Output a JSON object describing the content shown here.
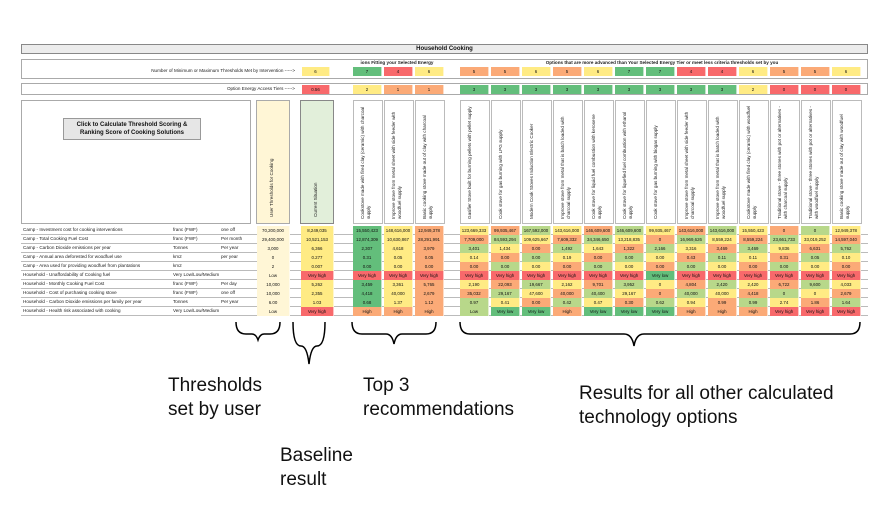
{
  "sheet": {
    "title": "Household Cooking",
    "thresholds_met_label": "Number of Minimum or Maximum Thresholds Met by Intervention ----->",
    "tier_label": "Option Energy Access Tiers ----->",
    "fitting_header": "ions Fitting your Selected Energy",
    "advanced_header": "Options that are more advanced than Your Selected Energy Tier or meet less criteria thresholds set by you",
    "button_label": "Click to Calculate Threshold Scoring & Ranking Score of Cooking Solutions",
    "user_thresholds_header": "User Thresholds for Cooking",
    "current_situation_header": "Current Situation",
    "current_thresholds_met": "6",
    "current_tier": "0.56"
  },
  "rows": [
    {
      "label": "Camp - Investment cost for cooking interventions",
      "unit": "franc (FWF)",
      "period": "one off",
      "threshold": "70,200,000"
    },
    {
      "label": "Camp - Total Cooking Fuel Cost",
      "unit": "franc (FWF)",
      "period": "Per month",
      "threshold": "29,400,000"
    },
    {
      "label": "Camp - Carbon Dioxide emissions per year",
      "unit": "Tonnes",
      "period": "Per year",
      "threshold": "3,000"
    },
    {
      "label": "Camp - Annual area deforested for woodfuel use",
      "unit": "km2",
      "period": "per year",
      "threshold": "0"
    },
    {
      "label": "Camp - Area used for providing woodfuel from plantations",
      "unit": "km2",
      "period": "",
      "threshold": "2"
    },
    {
      "label": "Household - Unaffordability of Cooking fuel",
      "unit": "Very Low/Low/Medium/High/Very high",
      "period": "",
      "threshold": "Low"
    },
    {
      "label": "Household - Monthly Cooking Fuel Cost",
      "unit": "franc (FWF)",
      "period": "Per day",
      "threshold": "10,000"
    },
    {
      "label": "Household - Cost of purchasing cooking stove",
      "unit": "franc (FWF)",
      "period": "one off",
      "threshold": "10,000"
    },
    {
      "label": "Household - Carbon Dioxide emissions per family per year",
      "unit": "Tonnes",
      "period": "Per year",
      "threshold": "6.00"
    },
    {
      "label": "Household - Health risk associated with cooking",
      "unit": "Very Low/Low/Medium/High/Very high",
      "period": "",
      "threshold": "Low"
    }
  ],
  "current_values": [
    "8,249,035",
    "10,521,153",
    "6,366",
    "0.277",
    "0.007",
    "Very high",
    "5,262",
    "2,355",
    "1.03",
    "Very high"
  ],
  "top3": [
    {
      "score": "7",
      "tier": "2",
      "name": "Cookstove made with fired clay (ceramic) with charcoal supply",
      "values": [
        "15,550,423",
        "12,874,309",
        "2,307",
        "0.31",
        "0.00",
        "Very high",
        "3,459",
        "4,418",
        "0.68",
        "High"
      ]
    },
    {
      "score": "4",
      "tier": "1",
      "name": "Improve stove from metal sheet with side feeder with woodfuel supply",
      "values": [
        "148,616,000",
        "10,630,867",
        "4,618",
        "0.05",
        "0.00",
        "Very high",
        "3,361",
        "40,000",
        "1.37",
        "High"
      ]
    },
    {
      "score": "6",
      "tier": "1",
      "name": "Basic cooking stove made out of clay with charcoal supply",
      "values": [
        "12,949,378",
        "28,291,991",
        "3,979",
        "0.05",
        "0.00",
        "Very high",
        "5,765",
        "2,679",
        "1.12",
        "High"
      ]
    }
  ],
  "others": [
    {
      "score": "5",
      "tier": "3",
      "name": "Gasifier Stove built for burning pellets with pellet supply",
      "values": [
        "123,669,333",
        "7,709,000",
        "3,401",
        "0.14",
        "0.00",
        "Very high",
        "2,190",
        "35,032",
        "0.97",
        "Low"
      ]
    },
    {
      "score": "5",
      "tier": "3",
      "name": "Cook stove for gas burning with LPG supply",
      "values": [
        "99,935,467",
        "84,593,294",
        "1,434",
        "0.00",
        "0.00",
        "Very high",
        "22,093",
        "29,167",
        "0.41",
        "Very low"
      ]
    },
    {
      "score": "6",
      "tier": "3",
      "name": "Modern Cook Stoves Induction Electric Cooker",
      "values": [
        "167,592,000",
        "109,625,667",
        "0.00",
        "0.00",
        "0.00",
        "Very high",
        "19,667",
        "47,600",
        "0.00",
        "Very low"
      ]
    },
    {
      "score": "5",
      "tier": "3",
      "name": "Improve stove from metal that is batch loaded with charcoal supply",
      "values": [
        "143,616,000",
        "7,609,332",
        "1,492",
        "0.19",
        "0.00",
        "Very high",
        "2,162",
        "40,000",
        "0.42",
        "High"
      ]
    },
    {
      "score": "6",
      "tier": "3",
      "name": "Cook stove for liquid fuel combustion with kerosene supply",
      "values": [
        "146,609,600",
        "34,346,650",
        "1,643",
        "0.00",
        "0.00",
        "Very high",
        "9,701",
        "40,400",
        "0.47",
        "Very low"
      ]
    },
    {
      "score": "7",
      "tier": "3",
      "name": "Cook stove for liquefied fuel combustion with ethanol supply",
      "values": [
        "146,609,600",
        "13,218,835",
        "1,322",
        "0.00",
        "0.00",
        "Very high",
        "3,952",
        "29,167",
        "0.30",
        "Very low"
      ]
    },
    {
      "score": "7",
      "tier": "3",
      "name": "Cook stove for gas burning with biogas supply",
      "values": [
        "99,935,467",
        "0",
        "2,166",
        "0.00",
        "0.00",
        "Very low",
        "0",
        "0",
        "0.62",
        "Very low"
      ]
    },
    {
      "score": "4",
      "tier": "3",
      "name": "Improve stove from metal sheet with side feeder with charcoal supply",
      "values": [
        "143,616,000",
        "16,969,626",
        "3,316",
        "0.43",
        "0.00",
        "Very high",
        "4,804",
        "40,000",
        "0.94",
        "High"
      ]
    },
    {
      "score": "4",
      "tier": "3",
      "name": "Improve stove from metal that is batch loaded with woodfuel supply",
      "values": [
        "143,616,000",
        "8,559,224",
        "3,469",
        "0.11",
        "0.00",
        "Very high",
        "2,420",
        "40,000",
        "0.99",
        "High"
      ]
    },
    {
      "score": "6",
      "tier": "2",
      "name": "Cookstove made with fired clay (ceramic) with woodfuel supply",
      "values": [
        "15,550,423",
        "8,559,224",
        "3,469",
        "0.11",
        "0.00",
        "Very high",
        "2,420",
        "4,418",
        "0.99",
        "High"
      ]
    },
    {
      "score": "5",
      "tier": "0",
      "name": "Traditional stove - three stones with pot or alternatives - with charcoal supply",
      "values": [
        "0",
        "23,661,733",
        "9,836",
        "0.31",
        "0.00",
        "Very high",
        "6,722",
        "0",
        "2.74",
        "Very high"
      ]
    },
    {
      "score": "5",
      "tier": "0",
      "name": "Traditional stove - three stones with pot or alternatives - with woodfuel supply",
      "values": [
        "0",
        "33,019,252",
        "6,631",
        "0.05",
        "0.00",
        "Very high",
        "9,600",
        "0",
        "1.86",
        "Very high"
      ]
    },
    {
      "score": "6",
      "tier": "0",
      "name": "Basic cooking stove made out of clay with woodfuel supply",
      "values": [
        "12,949,378",
        "14,597,040",
        "5,762",
        "0.10",
        "0.00",
        "Very high",
        "4,033",
        "2,679",
        "1.64",
        "Very high"
      ]
    }
  ],
  "captions": {
    "thresholds": "Thresholds\nset by user",
    "baseline": "Baseline\nresult",
    "top3": "Top 3\nrecommendations",
    "others": "Results for all other calculated\ntechnology options"
  },
  "colors": {
    "red": "#f8696b",
    "orange": "#fbaa77",
    "yellow": "#ffeb84",
    "green": "#63be7b",
    "lightgreen": "#b8d88a"
  }
}
